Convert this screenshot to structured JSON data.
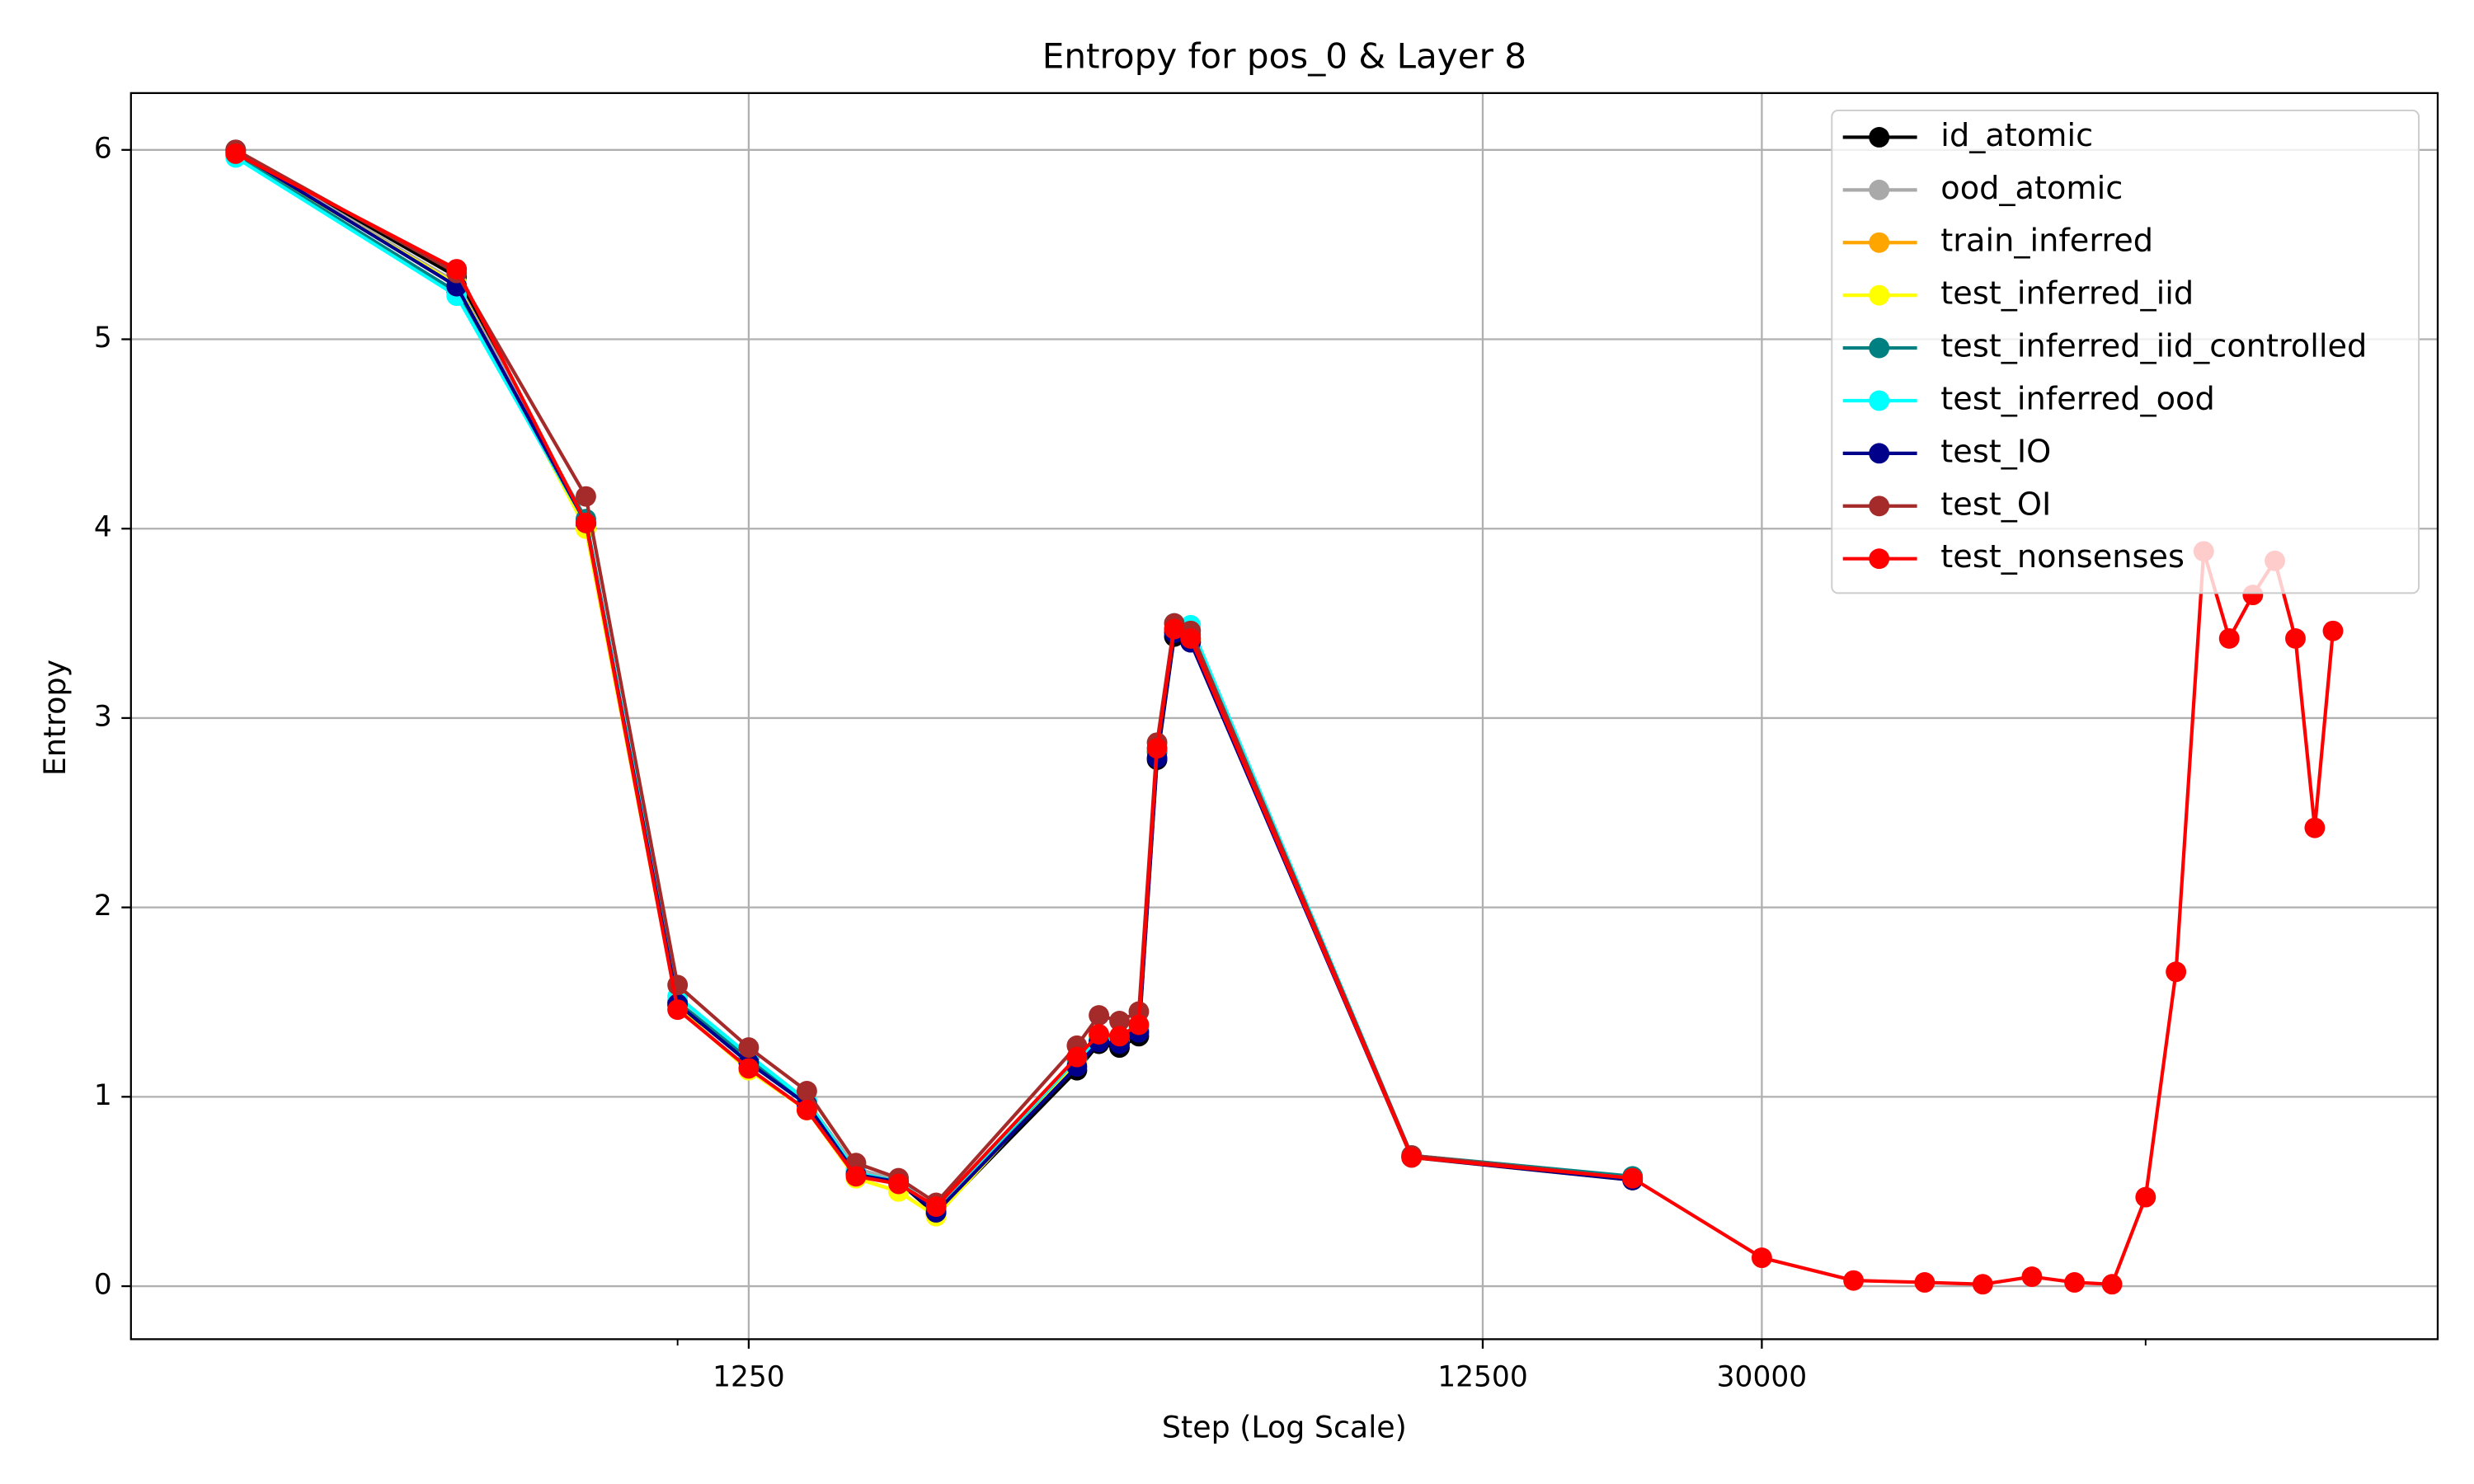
{
  "chart_data": {
    "type": "line",
    "title": "Entropy for pos_0 & Layer 8",
    "xlabel": "Step (Log Scale)",
    "ylabel": "Entropy",
    "xscale": "log",
    "grid": true,
    "legend": "upper right",
    "xlim": [
      180,
      250000
    ],
    "ylim": [
      -0.28,
      6.3
    ],
    "xticks": [
      1250,
      12500,
      30000
    ],
    "xminor_ticks": [
      1000,
      100000
    ],
    "yticks": [
      0,
      1,
      2,
      3,
      4,
      5,
      6
    ],
    "x": [
      250,
      500,
      750,
      1000,
      1250,
      1500,
      1750,
      2000,
      2250,
      3500,
      3750,
      4000,
      4250,
      4500,
      4750,
      5000,
      10000,
      20000,
      30000,
      40000,
      50000,
      60000,
      70000,
      80000,
      90000,
      100000,
      110000,
      120000,
      130000,
      140000,
      150000,
      160000,
      170000,
      180000
    ],
    "series": [
      {
        "name": "id_atomic",
        "color": "#000000",
        "values": [
          6.0,
          5.33,
          4.02,
          1.48,
          1.2,
          0.97,
          0.6,
          0.55,
          0.38,
          1.14,
          1.28,
          1.26,
          1.32,
          2.78,
          3.43,
          3.4,
          0.69,
          0.57,
          null,
          null,
          null,
          null,
          null,
          null,
          null,
          null,
          null,
          null,
          null,
          null,
          null,
          null,
          null,
          null
        ]
      },
      {
        "name": "ood_atomic",
        "color": "#a9a9a9",
        "values": [
          5.99,
          5.3,
          4.05,
          1.5,
          1.22,
          0.98,
          0.62,
          0.56,
          0.4,
          1.2,
          1.3,
          1.3,
          1.35,
          2.82,
          3.46,
          3.42,
          0.69,
          0.57,
          null,
          null,
          null,
          null,
          null,
          null,
          null,
          null,
          null,
          null,
          null,
          null,
          null,
          null,
          null,
          null
        ]
      },
      {
        "name": "train_inferred",
        "color": "#ffa500",
        "values": [
          5.98,
          5.29,
          4.0,
          1.47,
          1.14,
          0.93,
          0.57,
          0.5,
          0.37,
          1.18,
          1.32,
          1.3,
          1.36,
          2.82,
          3.47,
          3.41,
          0.68,
          0.56,
          null,
          null,
          null,
          null,
          null,
          null,
          null,
          null,
          null,
          null,
          null,
          null,
          null,
          null,
          null,
          null
        ]
      },
      {
        "name": "test_inferred_iid",
        "color": "#ffff00",
        "values": [
          5.98,
          5.29,
          4.0,
          1.47,
          1.14,
          0.93,
          0.57,
          0.5,
          0.37,
          1.18,
          1.32,
          1.3,
          1.36,
          2.82,
          3.47,
          3.41,
          0.68,
          0.56,
          null,
          null,
          null,
          null,
          null,
          null,
          null,
          null,
          null,
          null,
          null,
          null,
          null,
          null,
          null,
          null
        ]
      },
      {
        "name": "test_inferred_iid_controlled",
        "color": "#008080",
        "values": [
          5.97,
          5.25,
          4.05,
          1.5,
          1.2,
          0.96,
          0.6,
          0.55,
          0.4,
          1.2,
          1.3,
          1.3,
          1.35,
          2.82,
          3.47,
          3.44,
          0.69,
          0.58,
          null,
          null,
          null,
          null,
          null,
          null,
          null,
          null,
          null,
          null,
          null,
          null,
          null,
          null,
          null,
          null
        ]
      },
      {
        "name": "test_inferred_ood",
        "color": "#00ffff",
        "values": [
          5.96,
          5.23,
          4.03,
          1.53,
          1.22,
          0.98,
          0.6,
          0.55,
          0.41,
          1.2,
          1.3,
          1.3,
          1.36,
          2.84,
          3.5,
          3.49,
          0.69,
          0.57,
          null,
          null,
          null,
          null,
          null,
          null,
          null,
          null,
          null,
          null,
          null,
          null,
          null,
          null,
          null,
          null
        ]
      },
      {
        "name": "test_IO",
        "color": "#00008b",
        "values": [
          5.99,
          5.28,
          4.03,
          1.49,
          1.18,
          0.96,
          0.59,
          0.55,
          0.39,
          1.16,
          1.29,
          1.28,
          1.34,
          2.79,
          3.45,
          3.4,
          0.68,
          0.56,
          null,
          null,
          null,
          null,
          null,
          null,
          null,
          null,
          null,
          null,
          null,
          null,
          null,
          null,
          null,
          null
        ]
      },
      {
        "name": "test_OI",
        "color": "#a52a2a",
        "values": [
          6.0,
          5.35,
          4.17,
          1.59,
          1.26,
          1.03,
          0.65,
          0.57,
          0.44,
          1.27,
          1.43,
          1.4,
          1.45,
          2.87,
          3.5,
          3.46,
          0.69,
          0.57,
          null,
          null,
          null,
          null,
          null,
          null,
          null,
          null,
          null,
          null,
          null,
          null,
          null,
          null,
          null,
          null
        ]
      },
      {
        "name": "test_nonsenses",
        "color": "#ff0000",
        "values": [
          5.98,
          5.37,
          4.03,
          1.46,
          1.15,
          0.93,
          0.58,
          0.54,
          0.42,
          1.21,
          1.33,
          1.32,
          1.38,
          2.84,
          3.47,
          3.42,
          0.68,
          0.57,
          0.15,
          0.03,
          0.02,
          0.01,
          0.05,
          0.02,
          0.01,
          0.47,
          1.66,
          3.88,
          3.42,
          3.65,
          3.83,
          3.42,
          2.42,
          3.46
        ]
      }
    ]
  }
}
